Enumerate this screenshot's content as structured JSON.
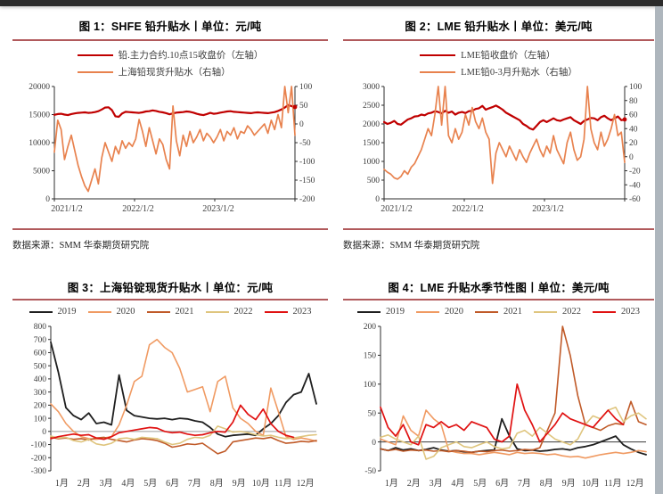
{
  "page": {
    "topbar_color": "#2b2b2b",
    "scrollbar_color": "#aeb6bd",
    "rule_color": "#b15a5c",
    "background": "#ffffff"
  },
  "figures": [
    {
      "title": "图 1：SHFE 铅升贴水丨单位：元/吨",
      "source": "数据来源：SMM 华泰期货研究院",
      "chart_data": {
        "type": "line",
        "dual_axis": true,
        "grid": false,
        "legend_position": "top",
        "x_ticks": [
          "2021/1/2",
          "2022/1/2",
          "2023/1/2"
        ],
        "left_axis": {
          "min": 0,
          "max": 20000,
          "ticks": [
            20000,
            15000,
            10000,
            5000,
            0
          ]
        },
        "right_axis": {
          "min": -200,
          "max": 100,
          "ticks": [
            100,
            50,
            0,
            -50,
            -100,
            -150,
            -200
          ]
        },
        "series": [
          {
            "name": "铅.主力合约.10点15收盘价（左轴）",
            "axis": "left",
            "color": "#c00000",
            "width": 2.2,
            "end_dot": true,
            "values": [
              14950,
              15100,
              15150,
              15000,
              14900,
              15100,
              15200,
              15300,
              15350,
              15400,
              15300,
              15350,
              15450,
              15600,
              15900,
              16250,
              16300,
              15800,
              14700,
              14600,
              15200,
              15500,
              15450,
              15400,
              15350,
              15300,
              15400,
              15550,
              15600,
              15750,
              15650,
              15500,
              15400,
              15250,
              15050,
              15200,
              15350,
              15400,
              15450,
              15550,
              15500,
              15350,
              15150,
              15000,
              14900,
              15100,
              15300,
              15150,
              15200,
              15350,
              15450,
              15550,
              15600,
              15500,
              15450,
              15400,
              15350,
              15300,
              15250,
              15350,
              15400,
              15350,
              15300,
              15250,
              15350,
              15450,
              15650,
              15900,
              16250,
              16700,
              16500,
              16350
            ]
          },
          {
            "name": "上海铅现货升贴水（右轴）",
            "axis": "right",
            "color": "#e8824e",
            "width": 1.7,
            "values": [
              -75,
              10,
              -15,
              -95,
              -60,
              -30,
              -70,
              -110,
              -140,
              -165,
              -180,
              -150,
              -120,
              -160,
              -90,
              -50,
              -75,
              -100,
              -60,
              -80,
              -45,
              -65,
              -50,
              -60,
              -40,
              12,
              -20,
              -60,
              -10,
              -45,
              -80,
              -40,
              -55,
              -95,
              -120,
              48,
              -45,
              -85,
              -30,
              -60,
              -20,
              -50,
              -35,
              -15,
              -45,
              -25,
              -35,
              -50,
              -35,
              -15,
              -45,
              -20,
              -30,
              -10,
              -40,
              -20,
              -25,
              -5,
              -15,
              -30,
              -20,
              -10,
              0,
              -25,
              10,
              -15,
              25,
              -10,
              100,
              30,
              100,
              -30
            ]
          }
        ]
      }
    },
    {
      "title": "图 2：LME 铅升贴水丨单位：美元/吨",
      "source": "数据来源：SMM 华泰期货研究院",
      "chart_data": {
        "type": "line",
        "dual_axis": true,
        "grid": false,
        "legend_position": "top",
        "x_ticks": [
          "2021/1/2",
          "2022/1/2",
          "2023/1/2"
        ],
        "left_axis": {
          "min": 0,
          "max": 3000,
          "ticks": [
            3000,
            2500,
            2000,
            1500,
            1000,
            500,
            0
          ]
        },
        "right_axis": {
          "min": -60,
          "max": 100,
          "ticks": [
            100,
            80,
            60,
            40,
            20,
            0,
            -20,
            -40,
            -60
          ]
        },
        "series": [
          {
            "name": "LME铅收盘价（左轴）",
            "axis": "left",
            "color": "#c00000",
            "width": 2.2,
            "end_dot": true,
            "values": [
              2050,
              2000,
              2030,
              2080,
              2000,
              1980,
              2050,
              2120,
              2150,
              2200,
              2210,
              2250,
              2230,
              2280,
              2300,
              2340,
              2320,
              2280,
              2350,
              2300,
              2330,
              2250,
              2300,
              2320,
              2290,
              2340,
              2350,
              2400,
              2420,
              2480,
              2380,
              2420,
              2450,
              2490,
              2440,
              2380,
              2300,
              2250,
              2200,
              2150,
              2100,
              2000,
              1950,
              1880,
              1850,
              1950,
              2050,
              2100,
              2050,
              2100,
              2150,
              2100,
              2080,
              2120,
              2150,
              2180,
              2100,
              2050,
              2000,
              2080,
              2120,
              2160,
              2150,
              2100,
              2180,
              2220,
              2150,
              2100,
              2150,
              2200,
              2100,
              2120
            ]
          },
          {
            "name": "LME铅0-3月升贴水（右轴）",
            "axis": "right",
            "color": "#e8824e",
            "width": 1.7,
            "values": [
              -18,
              -22,
              -25,
              -30,
              -32,
              -28,
              -20,
              -25,
              -15,
              -10,
              0,
              10,
              25,
              40,
              30,
              60,
              100,
              45,
              100,
              30,
              20,
              40,
              25,
              35,
              60,
              45,
              70,
              50,
              40,
              55,
              35,
              25,
              -38,
              5,
              20,
              10,
              0,
              15,
              5,
              -5,
              10,
              0,
              -8,
              5,
              15,
              25,
              10,
              0,
              15,
              5,
              30,
              10,
              0,
              -10,
              20,
              35,
              10,
              -5,
              0,
              25,
              100,
              40,
              20,
              10,
              35,
              15,
              25,
              40,
              60,
              30,
              35,
              -8
            ]
          }
        ]
      }
    },
    {
      "title": "图 3：上海铅锭现货升贴水丨单位：元/吨",
      "source": "",
      "chart_data": {
        "type": "line",
        "seasonal": true,
        "grid": false,
        "legend_position": "top",
        "zero_line": true,
        "x_labels": [
          "1月",
          "2月",
          "3月",
          "4月",
          "5月",
          "6月",
          "7月",
          "8月",
          "9月",
          "10月",
          "11月",
          "12月"
        ],
        "left_axis": {
          "min": -300,
          "max": 800,
          "ticks": [
            800,
            700,
            600,
            500,
            400,
            300,
            200,
            100,
            0,
            -100,
            -200,
            -300
          ]
        },
        "series": [
          {
            "name": "2019",
            "axis": "left",
            "color": "#1f1f1f",
            "width": 1.8,
            "values": [
              680,
              450,
              180,
              120,
              90,
              140,
              60,
              70,
              50,
              430,
              160,
              120,
              110,
              100,
              95,
              100,
              90,
              100,
              95,
              80,
              70,
              30,
              -20,
              -40,
              -30,
              -25,
              -20,
              -30,
              20,
              60,
              120,
              220,
              280,
              300,
              440,
              210
            ]
          },
          {
            "name": "2020",
            "axis": "left",
            "color": "#f09a62",
            "width": 1.6,
            "values": [
              210,
              150,
              60,
              0,
              -40,
              -55,
              -60,
              -50,
              -40,
              50,
              200,
              380,
              420,
              660,
              700,
              640,
              600,
              480,
              300,
              320,
              340,
              150,
              380,
              420,
              180,
              100,
              60,
              0,
              -30,
              330,
              150,
              -40,
              -60,
              -50,
              -60,
              -75
            ]
          },
          {
            "name": "2021",
            "axis": "left",
            "color": "#c05a28",
            "width": 1.6,
            "values": [
              -45,
              -55,
              -50,
              -60,
              -55,
              -65,
              -50,
              -45,
              -60,
              -70,
              -80,
              -65,
              -55,
              -60,
              -70,
              -90,
              -120,
              -110,
              -95,
              -100,
              -90,
              -130,
              -170,
              -150,
              -80,
              -70,
              -60,
              -50,
              -55,
              -45,
              -70,
              -90,
              -85,
              -75,
              -80,
              -70
            ]
          },
          {
            "name": "2022",
            "axis": "left",
            "color": "#dfc57e",
            "width": 1.6,
            "values": [
              -35,
              -50,
              -45,
              -70,
              -80,
              -60,
              -95,
              -105,
              -90,
              -55,
              -50,
              -60,
              -45,
              -50,
              -55,
              -80,
              -100,
              -90,
              -60,
              -45,
              -50,
              -30,
              40,
              20,
              -5,
              0,
              -10,
              -25,
              -35,
              -30,
              -45,
              -55,
              -50,
              -40,
              -30,
              -25
            ]
          },
          {
            "name": "2023",
            "axis": "left",
            "color": "#e01111",
            "width": 1.7,
            "values": [
              -55,
              -40,
              -30,
              -20,
              -30,
              -25,
              -50,
              -60,
              -40,
              -10,
              0,
              10,
              20,
              30,
              25,
              0,
              -10,
              -5,
              -20,
              -30,
              -25,
              -10,
              0,
              -5,
              70,
              200,
              130,
              90,
              170,
              60,
              0,
              -30,
              -45,
              null,
              null,
              null
            ]
          }
        ]
      }
    },
    {
      "title": "图 4：LME 升贴水季节性图丨单位：美元/吨",
      "source": "",
      "chart_data": {
        "type": "line",
        "seasonal": true,
        "grid": false,
        "legend_position": "top",
        "zero_line": true,
        "x_labels": [
          "1月",
          "2月",
          "3月",
          "4月",
          "5月",
          "6月",
          "7月",
          "8月",
          "9月",
          "10月",
          "11月",
          "12月"
        ],
        "left_axis": {
          "min": -50,
          "max": 200,
          "ticks": [
            200,
            150,
            100,
            50,
            0,
            -50
          ]
        },
        "series": [
          {
            "name": "2019",
            "axis": "left",
            "color": "#1f1f1f",
            "width": 1.8,
            "values": [
              -12,
              -15,
              -10,
              -14,
              -12,
              -15,
              -13,
              -10,
              -14,
              -16,
              -15,
              -17,
              -18,
              -16,
              -15,
              -14,
              40,
              10,
              -12,
              -15,
              -14,
              -16,
              -15,
              -13,
              -12,
              -14,
              -10,
              -8,
              -5,
              0,
              5,
              10,
              -5,
              -12,
              -18,
              -22
            ]
          },
          {
            "name": "2020",
            "axis": "left",
            "color": "#f09a62",
            "width": 1.6,
            "values": [
              5,
              0,
              -5,
              45,
              20,
              10,
              55,
              40,
              30,
              -15,
              -18,
              -20,
              -20,
              -22,
              -20,
              -18,
              -20,
              -22,
              -18,
              -20,
              -19,
              -20,
              -22,
              -21,
              -24,
              -26,
              -25,
              -28,
              -25,
              -22,
              -20,
              -18,
              -20,
              -18,
              -15,
              -17
            ]
          },
          {
            "name": "2021",
            "axis": "left",
            "color": "#c05a28",
            "width": 1.6,
            "values": [
              -12,
              -15,
              -13,
              -16,
              -14,
              -15,
              -14,
              -16,
              -15,
              -17,
              -15,
              -16,
              -18,
              -16,
              -17,
              -15,
              -14,
              -16,
              -15,
              -13,
              -14,
              -10,
              20,
              50,
              200,
              150,
              80,
              30,
              25,
              20,
              28,
              32,
              30,
              70,
              35,
              30
            ]
          },
          {
            "name": "2022",
            "axis": "left",
            "color": "#dfc57e",
            "width": 1.6,
            "values": [
              8,
              12,
              5,
              0,
              -5,
              10,
              -30,
              -25,
              -10,
              -5,
              0,
              -8,
              -10,
              -5,
              0,
              -8,
              -12,
              -10,
              15,
              20,
              10,
              25,
              15,
              5,
              0,
              -5,
              5,
              30,
              45,
              40,
              55,
              60,
              35,
              45,
              50,
              40
            ]
          },
          {
            "name": "2023",
            "axis": "left",
            "color": "#e01111",
            "width": 1.7,
            "values": [
              60,
              25,
              10,
              30,
              0,
              -5,
              30,
              25,
              35,
              25,
              30,
              20,
              35,
              30,
              25,
              5,
              0,
              10,
              100,
              55,
              30,
              0,
              15,
              30,
              50,
              40,
              35,
              30,
              25,
              40,
              55,
              40,
              30,
              null,
              null,
              null
            ]
          }
        ]
      }
    }
  ]
}
